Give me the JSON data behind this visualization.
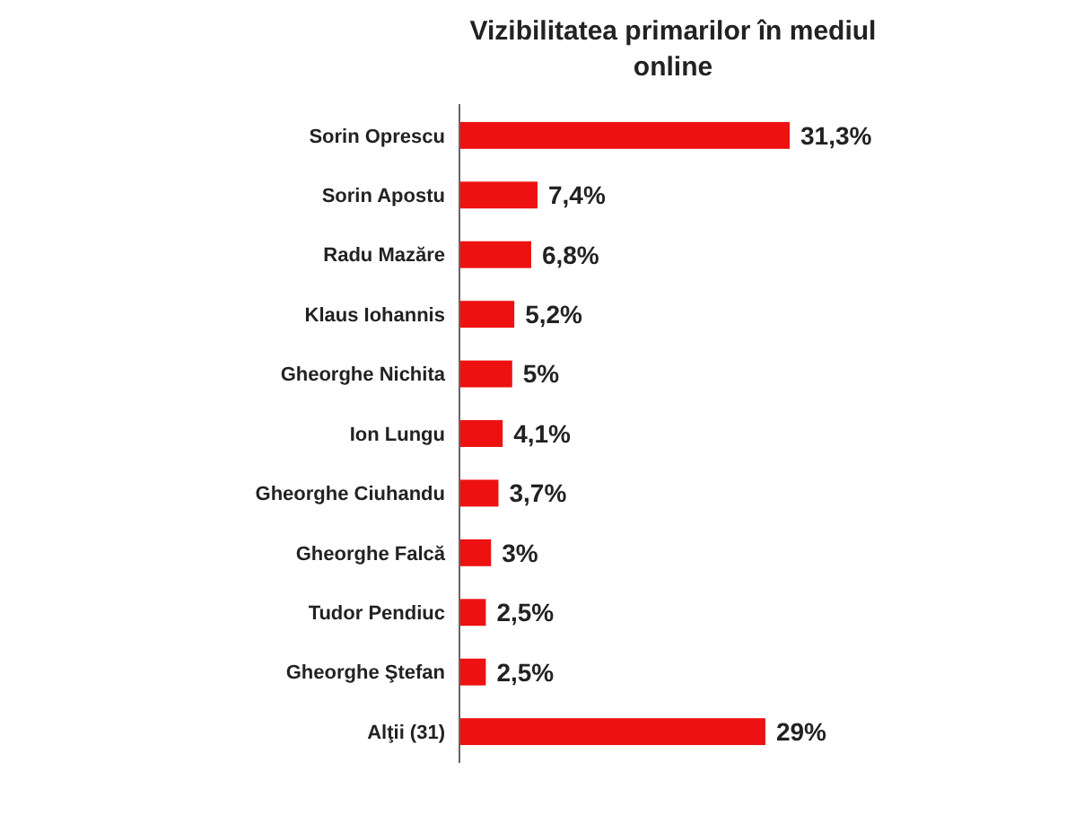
{
  "chart_data": {
    "type": "bar",
    "orientation": "horizontal",
    "title": "Vizibilitatea primarilor în mediul online",
    "categories": [
      "Sorin Oprescu",
      "Sorin Apostu",
      "Radu Mazăre",
      "Klaus Iohannis",
      "Gheorghe Nichita",
      "Ion Lungu",
      "Gheorghe Ciuhandu",
      "Gheorghe Falcă",
      "Tudor Pendiuc",
      "Gheorghe Ştefan",
      "Alţii (31)"
    ],
    "values": [
      31.3,
      7.4,
      6.8,
      5.2,
      5,
      4.1,
      3.7,
      3,
      2.5,
      2.5,
      29
    ],
    "value_labels": [
      "31,3%",
      "7,4%",
      "6,8%",
      "5,2%",
      "5%",
      "4,1%",
      "3,7%",
      "3%",
      "2,5%",
      "2,5%",
      "29%"
    ],
    "color": "#ee1111"
  }
}
